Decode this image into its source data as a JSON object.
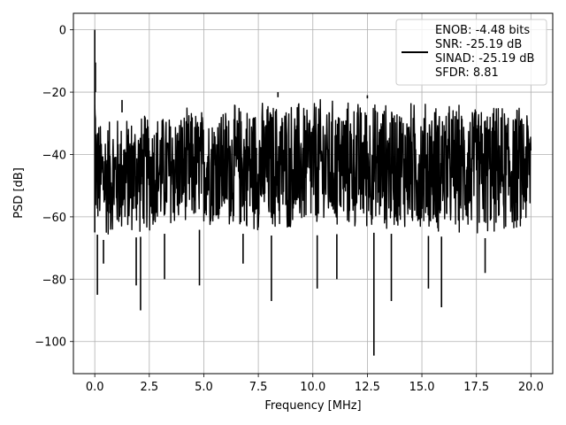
{
  "chart_data": {
    "type": "line",
    "title": "",
    "xlabel": "Frequency [MHz]",
    "ylabel": "PSD [dB]",
    "xlim": [
      -0.98,
      21.0
    ],
    "ylim": [
      -110.3,
      5.3
    ],
    "xticks": [
      0.0,
      2.5,
      5.0,
      7.5,
      10.0,
      12.5,
      15.0,
      17.5,
      20.0
    ],
    "xtick_labels": [
      "0.0",
      "2.5",
      "5.0",
      "7.5",
      "10.0",
      "12.5",
      "15.0",
      "17.5",
      "20.0"
    ],
    "yticks": [
      0,
      -20,
      -40,
      -60,
      -80,
      -100
    ],
    "ytick_labels": [
      "0",
      "−20",
      "−40",
      "−60",
      "−80",
      "−100"
    ],
    "grid": true,
    "legend_position": "upper-right",
    "line_color": "#000000",
    "series": [
      {
        "name": "ENOB: -4.48 bits\nSNR: -25.19 dB\nSINAD: -25.19 dB\nSFDR: 8.81",
        "description": "noise-like PSD spanning 0 to 20 MHz; band roughly -65 to -25 dB",
        "upper_envelope": [
          [
            0.0,
            0
          ],
          [
            0.08,
            -28
          ],
          [
            0.5,
            -27
          ],
          [
            2.0,
            -26
          ],
          [
            5.0,
            -24
          ],
          [
            7.5,
            -22
          ],
          [
            10.0,
            -21
          ],
          [
            12.5,
            -22
          ],
          [
            15.0,
            -22
          ],
          [
            17.5,
            -23
          ],
          [
            19.9,
            -23
          ],
          [
            20.0,
            -19
          ]
        ],
        "lower_envelope": [
          [
            0.0,
            -65
          ],
          [
            0.5,
            -68
          ],
          [
            2.5,
            -66
          ],
          [
            5.0,
            -64
          ],
          [
            7.5,
            -66
          ],
          [
            10.0,
            -66
          ],
          [
            12.5,
            -65
          ],
          [
            15.0,
            -66
          ],
          [
            17.5,
            -67
          ],
          [
            20.0,
            -66
          ]
        ],
        "peaks": [
          [
            0.0,
            0
          ],
          [
            0.03,
            -20
          ],
          [
            1.25,
            -22.5
          ],
          [
            8.4,
            -20
          ],
          [
            12.5,
            -21
          ],
          [
            20.0,
            -19
          ]
        ],
        "dips": [
          [
            0.12,
            -85
          ],
          [
            0.4,
            -75
          ],
          [
            1.9,
            -82
          ],
          [
            2.1,
            -90
          ],
          [
            3.2,
            -80
          ],
          [
            4.8,
            -82
          ],
          [
            6.8,
            -75
          ],
          [
            8.1,
            -87
          ],
          [
            10.2,
            -83
          ],
          [
            11.1,
            -80
          ],
          [
            12.8,
            -104.5
          ],
          [
            13.6,
            -87
          ],
          [
            15.3,
            -83
          ],
          [
            15.9,
            -89
          ],
          [
            17.9,
            -78
          ]
        ]
      }
    ]
  }
}
